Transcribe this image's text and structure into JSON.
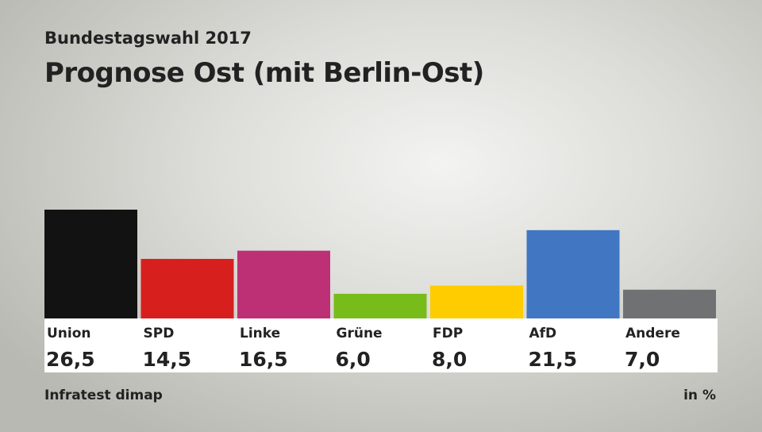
{
  "header": {
    "subtitle": "Bundestagswahl 2017",
    "title": "Prognose Ost (mit Berlin-Ost)"
  },
  "footer": {
    "source": "Infratest dimap",
    "unit": "in %"
  },
  "chart_data": {
    "type": "bar",
    "title": "Prognose Ost (mit Berlin-Ost)",
    "subtitle": "Bundestagswahl 2017",
    "categories": [
      "Union",
      "SPD",
      "Linke",
      "Grüne",
      "FDP",
      "AfD",
      "Andere"
    ],
    "values": [
      26.5,
      14.5,
      16.5,
      6.0,
      8.0,
      21.5,
      7.0
    ],
    "value_labels": [
      "26,5",
      "14,5",
      "16,5",
      "6,0",
      "8,0",
      "21,5",
      "7,0"
    ],
    "colors": [
      "#121212",
      "#d71f1d",
      "#be3075",
      "#78bc1b",
      "#ffcc00",
      "#4176c2",
      "#707173"
    ],
    "ylim": [
      0,
      26.5
    ],
    "grid": false,
    "legend": "none",
    "unit": "in %"
  }
}
